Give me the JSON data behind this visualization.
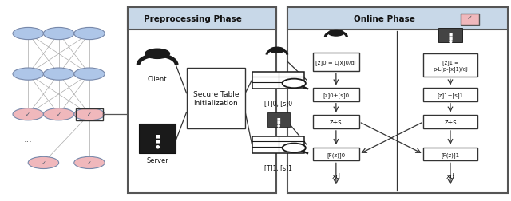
{
  "bg_color": "#ffffff",
  "panel_header_color": "#c8d8e8",
  "panel_border_color": "#555555",
  "box_bg": "#ffffff",
  "box_border": "#333333",
  "node_blue": "#aec6e8",
  "node_pink": "#f0b8bc",
  "text_color": "#000000",
  "arrow_color": "#333333",
  "preproc_title": "Preprocessing Phase",
  "online_title": "Online Phase",
  "box0_text": "[z]0 = L[x]0/dJ",
  "box1_text": "[z]1 =\np-L(p-[x]1)/dJ",
  "box2_0_text": "[z]0+[s]0",
  "box2_1_text": "[z]1+[s]1",
  "box3_text": "z+s",
  "box4_0_text": "[F(z)]0",
  "box4_1_text": "[F(z)]1",
  "xd_text": "xd",
  "client_text": "Client",
  "server_text": "Server",
  "sti_text": "Secure Table\nInitialization",
  "tbl0_text": "[T]0, [s]0",
  "tbl1_text": "[T]1, [s]1"
}
